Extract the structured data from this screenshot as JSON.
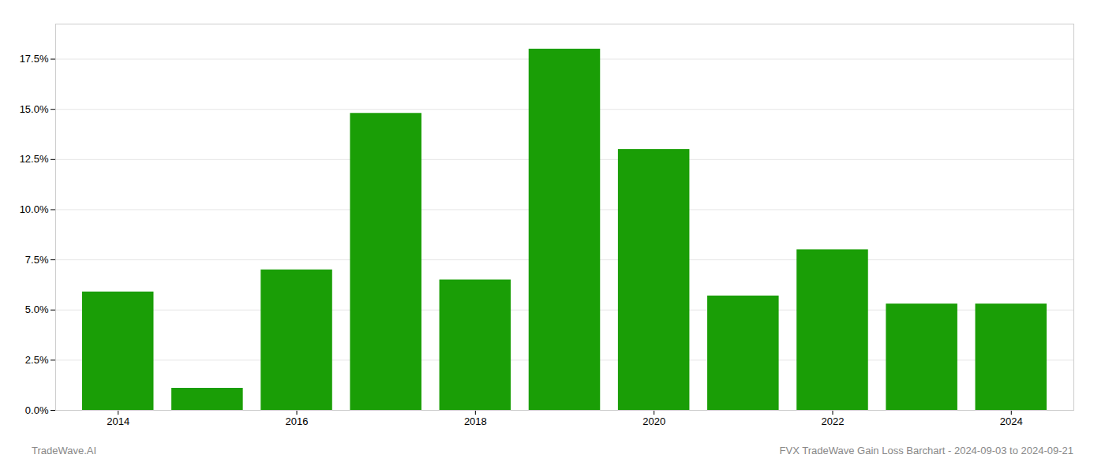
{
  "chart_data": {
    "type": "bar",
    "x": [
      2014,
      2015,
      2016,
      2017,
      2018,
      2019,
      2020,
      2021,
      2022,
      2023,
      2024
    ],
    "values": [
      0.059,
      0.011,
      0.07,
      0.148,
      0.065,
      0.18,
      0.13,
      0.057,
      0.08,
      0.053,
      0.053
    ],
    "color": "#1a9e06",
    "xlim": [
      2013.3,
      2024.7
    ],
    "xticks": [
      2014,
      2016,
      2018,
      2020,
      2022,
      2024
    ],
    "ylim": [
      0,
      0.1925
    ],
    "yticks": [
      {
        "value": 0.0,
        "label": "0.0%"
      },
      {
        "value": 0.025,
        "label": "2.5%"
      },
      {
        "value": 0.05,
        "label": "5.0%"
      },
      {
        "value": 0.075,
        "label": "7.5%"
      },
      {
        "value": 0.1,
        "label": "10.0%"
      },
      {
        "value": 0.125,
        "label": "12.5%"
      },
      {
        "value": 0.15,
        "label": "15.0%"
      },
      {
        "value": 0.175,
        "label": "17.5%"
      }
    ],
    "grid": true,
    "annotations": [
      "TradeWave.AI",
      "FVX TradeWave Gain Loss Barchart - 2024-09-03 to 2024-09-21"
    ]
  }
}
